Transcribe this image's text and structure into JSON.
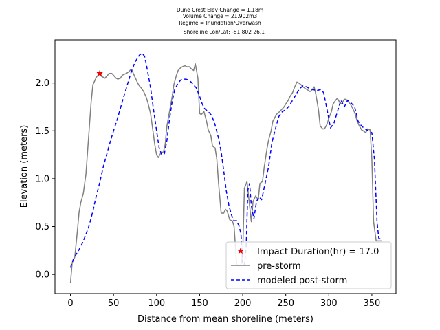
{
  "chart_data": {
    "type": "line",
    "title_lines": [
      "Dune Crest Elev Change = 1.18m",
      "Volume Change = 21.902m3",
      "Regime = Inundation/Overwash",
      "Shoreline Lon/Lat: -81.802 26.1"
    ],
    "xlabel": "Distance from mean shoreline (meters)",
    "ylabel": "Elevation (meters)",
    "xlim": [
      -18,
      378
    ],
    "ylim": [
      -0.2,
      2.45
    ],
    "x_ticks": [
      0,
      50,
      100,
      150,
      200,
      250,
      300,
      350
    ],
    "x_tick_labels": [
      "0",
      "50",
      "100",
      "150",
      "200",
      "250",
      "300",
      "350"
    ],
    "y_ticks": [
      0.0,
      0.5,
      1.0,
      1.5,
      2.0
    ],
    "y_tick_labels": [
      "0.0",
      "0.5",
      "1.0",
      "1.5",
      "2.0"
    ],
    "grid": false,
    "legend_position": "lower-right",
    "colors": {
      "pre": "#808080",
      "post": "#0000ff",
      "marker": "#ff0000"
    },
    "legend": [
      {
        "label": "Impact Duration(hr) = 17.0",
        "kind": "marker"
      },
      {
        "label": "pre-storm",
        "kind": "solid"
      },
      {
        "label": "modeled post-storm",
        "kind": "dashed"
      }
    ],
    "marker_point": {
      "x": 34,
      "y": 2.1
    },
    "series": [
      {
        "name": "pre-storm",
        "x": [
          0,
          2,
          5,
          8,
          10,
          12,
          15,
          18,
          20,
          22,
          24,
          26,
          28,
          30,
          32,
          34,
          36,
          38,
          40,
          42,
          45,
          48,
          50,
          53,
          55,
          58,
          60,
          62,
          65,
          68,
          70,
          72,
          75,
          78,
          80,
          82,
          85,
          88,
          90,
          93,
          95,
          98,
          100,
          102,
          105,
          108,
          110,
          112,
          115,
          118,
          120,
          123,
          125,
          128,
          130,
          133,
          135,
          138,
          140,
          143,
          145,
          148,
          150,
          152,
          155,
          158,
          160,
          163,
          165,
          168,
          170,
          172,
          175,
          178,
          180,
          182,
          185,
          188,
          190,
          193,
          195,
          198,
          200,
          202,
          205,
          208,
          210,
          212,
          215,
          218,
          220,
          223,
          225,
          228,
          230,
          233,
          235,
          238,
          240,
          243,
          245,
          248,
          250,
          253,
          255,
          258,
          260,
          263,
          265,
          268,
          270,
          273,
          275,
          278,
          280,
          283,
          285,
          288,
          290,
          293,
          295,
          298,
          300,
          303,
          305,
          308,
          310,
          313,
          315,
          318,
          320,
          323,
          325,
          328,
          330,
          333,
          335,
          338,
          340,
          343,
          345,
          348,
          350,
          352,
          355,
          358,
          360,
          362
        ],
        "y": [
          -0.09,
          0.12,
          0.18,
          0.45,
          0.65,
          0.75,
          0.85,
          1.05,
          1.3,
          1.55,
          1.8,
          1.98,
          2.02,
          2.06,
          2.08,
          2.1,
          2.07,
          2.06,
          2.05,
          2.07,
          2.1,
          2.1,
          2.08,
          2.05,
          2.04,
          2.05,
          2.08,
          2.09,
          2.1,
          2.12,
          2.14,
          2.12,
          2.06,
          2.0,
          1.97,
          1.95,
          1.91,
          1.85,
          1.79,
          1.68,
          1.55,
          1.35,
          1.25,
          1.22,
          1.27,
          1.28,
          1.36,
          1.55,
          1.7,
          1.85,
          1.98,
          2.08,
          2.13,
          2.16,
          2.17,
          2.18,
          2.17,
          2.17,
          2.15,
          2.13,
          2.2,
          2.05,
          1.68,
          1.67,
          1.7,
          1.6,
          1.51,
          1.45,
          1.34,
          1.32,
          1.2,
          0.95,
          0.64,
          0.64,
          0.68,
          0.66,
          0.57,
          0.56,
          0.5,
          0.1,
          0.09,
          0.1,
          0.22,
          0.9,
          0.97,
          0.72,
          0.55,
          0.76,
          0.82,
          0.78,
          0.95,
          0.97,
          1.12,
          1.3,
          1.4,
          1.5,
          1.6,
          1.65,
          1.68,
          1.7,
          1.72,
          1.75,
          1.78,
          1.82,
          1.86,
          1.9,
          1.95,
          2.01,
          2.0,
          1.98,
          1.96,
          1.94,
          1.93,
          1.91,
          1.92,
          1.96,
          1.88,
          1.72,
          1.55,
          1.52,
          1.52,
          1.57,
          1.63,
          1.7,
          1.78,
          1.82,
          1.84,
          1.79,
          1.78,
          1.83,
          1.83,
          1.8,
          1.78,
          1.73,
          1.69,
          1.6,
          1.56,
          1.51,
          1.5,
          1.48,
          1.52,
          1.51,
          1.2,
          0.55,
          0.35,
          0.35,
          0.35,
          0.35
        ]
      },
      {
        "name": "modeled post-storm",
        "x": [
          0,
          3,
          6,
          10,
          14,
          18,
          22,
          26,
          30,
          34,
          38,
          42,
          46,
          50,
          55,
          60,
          65,
          70,
          75,
          80,
          83,
          86,
          88,
          90,
          93,
          96,
          100,
          103,
          106,
          109,
          112,
          115,
          118,
          121,
          125,
          128,
          131,
          134,
          137,
          140,
          143,
          146,
          150,
          153,
          156,
          160,
          164,
          168,
          172,
          175,
          178,
          181,
          184,
          187,
          190,
          193,
          196,
          198,
          200,
          202,
          204,
          206,
          208,
          210,
          213,
          216,
          219,
          222,
          226,
          230,
          234,
          238,
          242,
          246,
          250,
          254,
          258,
          262,
          266,
          270,
          274,
          278,
          282,
          286,
          290,
          294,
          298,
          302,
          306,
          310,
          314,
          318,
          322,
          326,
          330,
          334,
          338,
          342,
          346,
          350,
          353,
          356,
          358,
          360,
          362
        ],
        "y": [
          0.07,
          0.15,
          0.2,
          0.26,
          0.33,
          0.42,
          0.52,
          0.66,
          0.82,
          0.96,
          1.12,
          1.25,
          1.38,
          1.5,
          1.64,
          1.8,
          1.95,
          2.1,
          2.22,
          2.29,
          2.31,
          2.28,
          2.2,
          2.1,
          1.95,
          1.75,
          1.5,
          1.32,
          1.25,
          1.26,
          1.4,
          1.62,
          1.8,
          1.93,
          2.0,
          2.03,
          2.04,
          2.04,
          2.03,
          2.01,
          1.98,
          1.95,
          1.86,
          1.78,
          1.73,
          1.7,
          1.66,
          1.56,
          1.42,
          1.28,
          1.08,
          0.87,
          0.72,
          0.62,
          0.56,
          0.56,
          0.5,
          0.42,
          0.1,
          0.1,
          0.28,
          0.88,
          0.95,
          0.72,
          0.58,
          0.76,
          0.81,
          0.78,
          0.95,
          1.12,
          1.38,
          1.52,
          1.65,
          1.7,
          1.72,
          1.76,
          1.82,
          1.88,
          1.94,
          1.97,
          1.96,
          1.94,
          1.93,
          1.92,
          1.93,
          1.9,
          1.72,
          1.53,
          1.58,
          1.7,
          1.82,
          1.75,
          1.82,
          1.79,
          1.75,
          1.6,
          1.55,
          1.52,
          1.5,
          1.48,
          1.2,
          0.55,
          0.38,
          0.37,
          0.37
        ]
      }
    ]
  }
}
